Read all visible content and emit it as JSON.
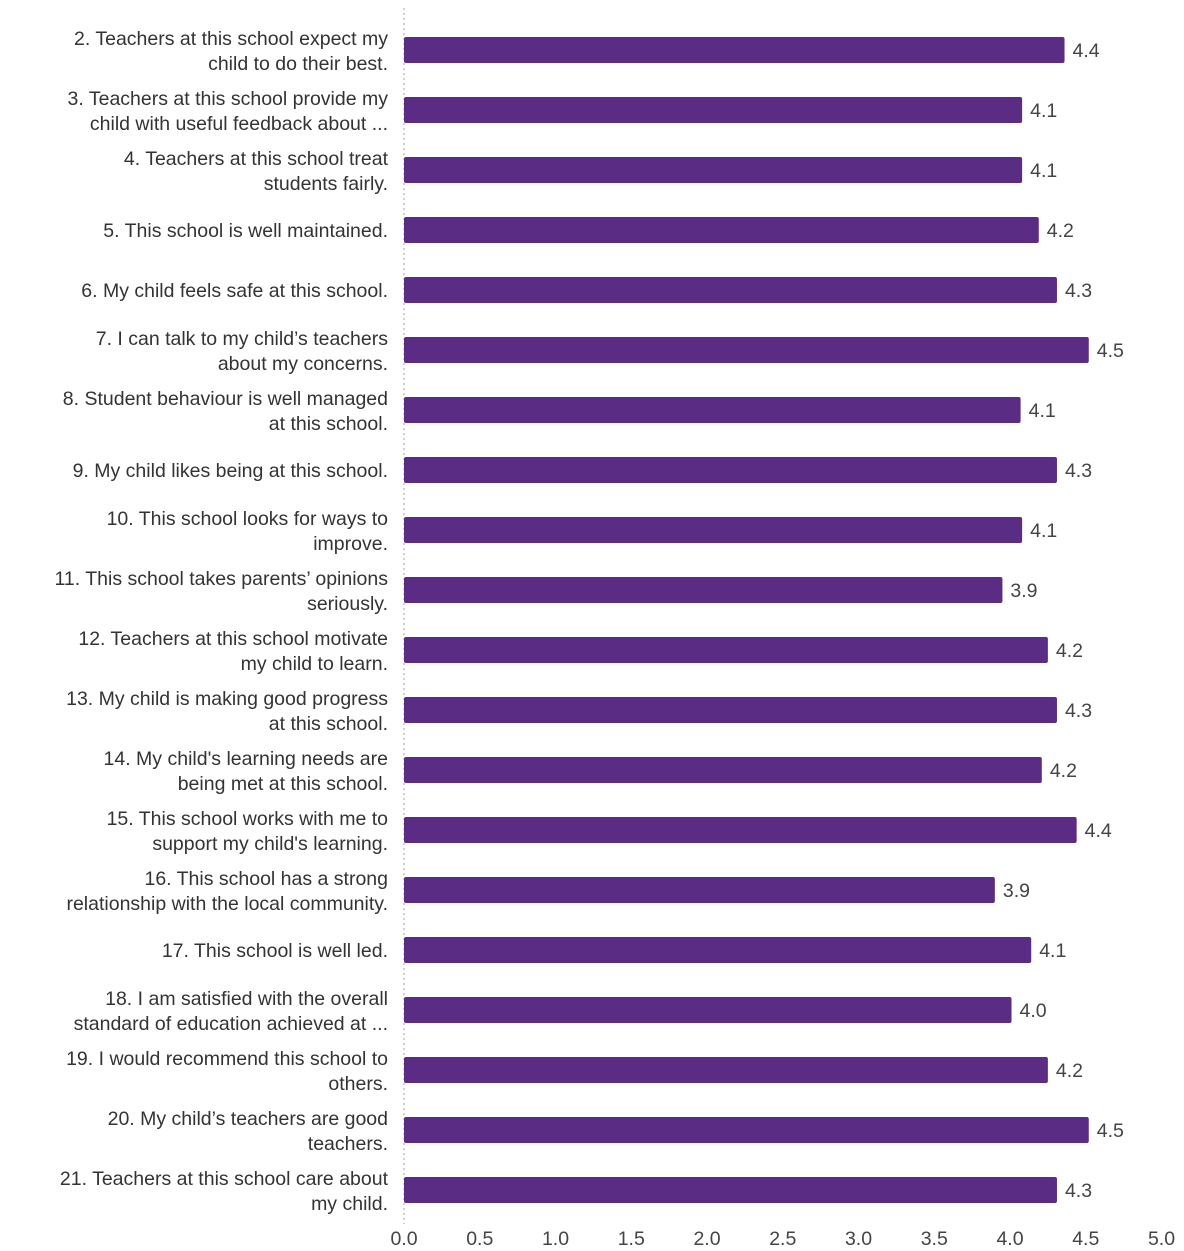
{
  "chart_data": {
    "type": "bar",
    "orientation": "horizontal",
    "title": "",
    "xlabel": "",
    "ylabel": "",
    "xlim": [
      0,
      5
    ],
    "grid": false,
    "bar_color": "#5b2c83",
    "categories": [
      [
        "2. Teachers at this school expect my",
        "child to do their best."
      ],
      [
        "3. Teachers at this school provide my",
        "child with useful feedback about ..."
      ],
      [
        "4. Teachers at this school treat",
        "students fairly."
      ],
      [
        "5. This school is well maintained."
      ],
      [
        "6. My child feels safe at this school."
      ],
      [
        "7. I can talk to my child’s teachers",
        "about my concerns."
      ],
      [
        "8. Student behaviour is well managed",
        "at this school."
      ],
      [
        "9. My child likes being at this school."
      ],
      [
        "10. This school looks for ways to",
        "improve."
      ],
      [
        "11. This school takes parents’ opinions",
        "seriously."
      ],
      [
        "12. Teachers at this school motivate",
        "my child to learn."
      ],
      [
        "13. My child is making good progress",
        "at this school."
      ],
      [
        "14. My child's learning needs are",
        "being met at this school."
      ],
      [
        "15. This school works with me to",
        "support my child's learning."
      ],
      [
        "16. This school has a strong",
        "relationship with the local community."
      ],
      [
        "17. This school is well led."
      ],
      [
        "18. I am satisfied with the overall",
        "standard of education achieved at ..."
      ],
      [
        "19. I would recommend this school to",
        "others."
      ],
      [
        "20. My child’s teachers are good",
        "teachers."
      ],
      [
        "21. Teachers at this school care about",
        "my child."
      ]
    ],
    "values": [
      4.36,
      4.08,
      4.08,
      4.19,
      4.31,
      4.52,
      4.07,
      4.31,
      4.08,
      3.95,
      4.25,
      4.31,
      4.21,
      4.44,
      3.9,
      4.14,
      4.01,
      4.25,
      4.52,
      4.31
    ],
    "value_labels": [
      "4.4",
      "4.1",
      "4.1",
      "4.2",
      "4.3",
      "4.5",
      "4.1",
      "4.3",
      "4.1",
      "3.9",
      "4.2",
      "4.3",
      "4.2",
      "4.4",
      "3.9",
      "4.1",
      "4.0",
      "4.2",
      "4.5",
      "4.3"
    ],
    "x_ticks": [
      "0.0",
      "0.5",
      "1.0",
      "1.5",
      "2.0",
      "2.5",
      "3.0",
      "3.5",
      "4.0",
      "4.5",
      "5.0"
    ]
  }
}
